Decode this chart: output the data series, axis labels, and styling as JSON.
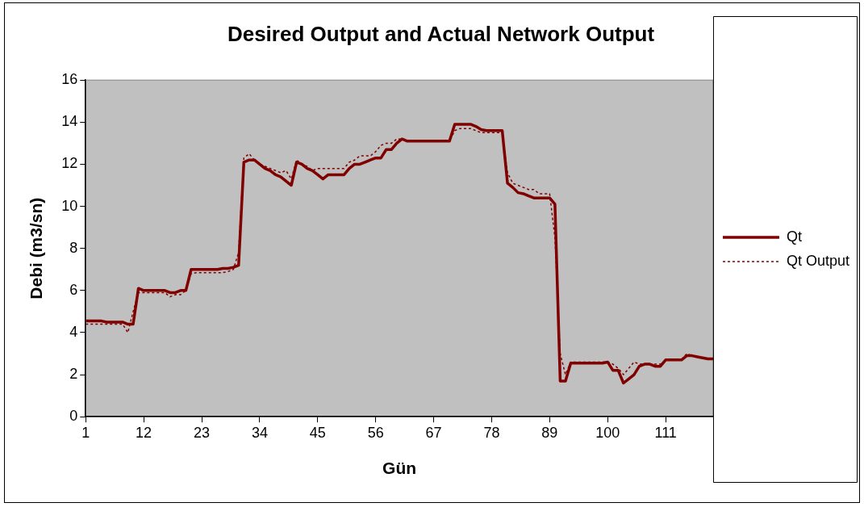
{
  "chart_data": {
    "type": "line",
    "title": "Desired Output and Actual Network Output",
    "xlabel": "Gün",
    "ylabel": "Debi (m3/sn)",
    "x": [
      1,
      2,
      3,
      4,
      5,
      6,
      7,
      8,
      9,
      10,
      11,
      12,
      13,
      14,
      15,
      16,
      17,
      18,
      19,
      20,
      21,
      22,
      23,
      24,
      25,
      26,
      27,
      28,
      29,
      30,
      31,
      32,
      33,
      34,
      35,
      36,
      37,
      38,
      39,
      40,
      41,
      42,
      43,
      44,
      45,
      46,
      47,
      48,
      49,
      50,
      51,
      52,
      53,
      54,
      55,
      56,
      57,
      58,
      59,
      60,
      61,
      62,
      63,
      64,
      65,
      66,
      67,
      68,
      69,
      70,
      71,
      72,
      73,
      74,
      75,
      76,
      77,
      78,
      79,
      80,
      81,
      82,
      83,
      84,
      85,
      86,
      87,
      88,
      89,
      90,
      91,
      92,
      93,
      94,
      95,
      96,
      97,
      98,
      99,
      100,
      101,
      102,
      103,
      104,
      105,
      106,
      107,
      108,
      109,
      110,
      111,
      112,
      113,
      114,
      115,
      116,
      117,
      118,
      119,
      120
    ],
    "xlim": [
      1,
      120
    ],
    "xticks": [
      1,
      12,
      23,
      34,
      45,
      56,
      67,
      78,
      89,
      100,
      111
    ],
    "ylim": [
      0,
      16
    ],
    "yticks": [
      0,
      2,
      4,
      6,
      8,
      10,
      12,
      14,
      16
    ],
    "marker": "none",
    "legend": "right",
    "series": [
      {
        "name": "Qt",
        "color": "#800000",
        "line_style": "solid",
        "values": [
          4.55,
          4.55,
          4.55,
          4.55,
          4.5,
          4.5,
          4.5,
          4.5,
          4.4,
          4.4,
          6.1,
          6.0,
          6.0,
          6.0,
          6.0,
          6.0,
          5.9,
          5.9,
          6.0,
          6.0,
          7.0,
          7.0,
          7.0,
          7.0,
          7.0,
          7.0,
          7.05,
          7.05,
          7.1,
          7.2,
          12.1,
          12.2,
          12.2,
          12.0,
          11.8,
          11.7,
          11.5,
          11.4,
          11.2,
          11.0,
          12.1,
          12.0,
          11.8,
          11.7,
          11.5,
          11.3,
          11.5,
          11.5,
          11.5,
          11.5,
          11.8,
          12.0,
          12.0,
          12.1,
          12.2,
          12.3,
          12.3,
          12.7,
          12.7,
          13.0,
          13.2,
          13.1,
          13.1,
          13.1,
          13.1,
          13.1,
          13.1,
          13.1,
          13.1,
          13.1,
          13.9,
          13.9,
          13.9,
          13.9,
          13.8,
          13.65,
          13.6,
          13.6,
          13.6,
          13.6,
          11.1,
          10.9,
          10.65,
          10.6,
          10.5,
          10.4,
          10.4,
          10.4,
          10.4,
          10.1,
          1.7,
          1.7,
          2.55,
          2.55,
          2.55,
          2.55,
          2.55,
          2.55,
          2.55,
          2.6,
          2.2,
          2.2,
          1.6,
          1.8,
          2.0,
          2.4,
          2.5,
          2.5,
          2.4,
          2.4,
          2.7,
          2.7,
          2.7,
          2.7,
          2.9,
          2.9,
          2.85,
          2.8,
          2.75,
          2.75
        ]
      },
      {
        "name": "Qt Output",
        "color": "#800000",
        "line_style": "dotted",
        "values": [
          4.4,
          4.4,
          4.4,
          4.4,
          4.4,
          4.4,
          4.4,
          4.4,
          4.0,
          5.0,
          5.9,
          5.9,
          5.9,
          5.9,
          5.9,
          5.9,
          5.7,
          5.8,
          5.8,
          6.0,
          6.8,
          6.85,
          6.85,
          6.85,
          6.85,
          6.85,
          6.85,
          6.9,
          7.0,
          7.8,
          12.3,
          12.5,
          12.2,
          12.0,
          11.9,
          11.8,
          11.7,
          11.6,
          11.7,
          11.3,
          12.2,
          12.0,
          11.9,
          11.7,
          11.8,
          11.8,
          11.8,
          11.8,
          11.8,
          11.8,
          12.1,
          12.2,
          12.4,
          12.4,
          12.4,
          12.6,
          12.9,
          13.0,
          13.0,
          13.2,
          13.2,
          13.1,
          13.1,
          13.1,
          13.1,
          13.1,
          13.1,
          13.1,
          13.1,
          13.1,
          13.6,
          13.7,
          13.7,
          13.7,
          13.6,
          13.5,
          13.5,
          13.5,
          13.5,
          13.5,
          11.6,
          11.1,
          11.0,
          10.9,
          10.8,
          10.8,
          10.6,
          10.6,
          10.6,
          8.5,
          3.0,
          2.0,
          2.6,
          2.6,
          2.6,
          2.6,
          2.6,
          2.6,
          2.6,
          2.6,
          2.5,
          2.3,
          2.0,
          2.3,
          2.6,
          2.5,
          2.5,
          2.5,
          2.5,
          2.5,
          2.7,
          2.7,
          2.7,
          2.7,
          3.0,
          2.9,
          2.85,
          2.8,
          2.75,
          2.75
        ]
      }
    ]
  }
}
